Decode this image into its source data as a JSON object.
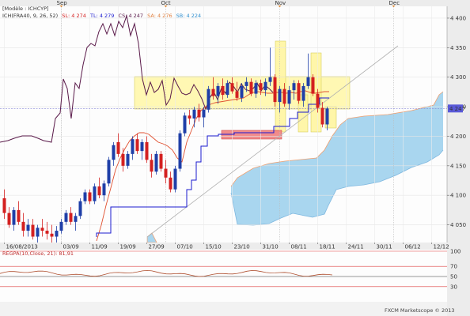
{
  "header": {
    "instrument": "[Modèle : ICHCYP]",
    "ichimoku_label": "ICH(FRA40, 9, 26, 52)",
    "sl": "SL: 4 274",
    "tl": "TL: 4 279",
    "cs": "CS: 4 247",
    "sa": "SA: 4 276",
    "sb": "SB: 4 224"
  },
  "oscillator": {
    "label": "REGPA(10,Close, 21): 81,91",
    "levels": [
      {
        "value": 100,
        "label": "100"
      },
      {
        "value": 70,
        "label": "70"
      },
      {
        "value": 50,
        "label": "50"
      },
      {
        "value": 30,
        "label": "30"
      }
    ]
  },
  "footer": {
    "copyright": "FXCM Marketscope © 2013"
  },
  "price_marker": {
    "value": 4247,
    "label": "4 247"
  },
  "colors": {
    "bull": "#1f3fa8",
    "bear": "#d42020",
    "tenkan": "#e05030",
    "kijun": "#1a1ad0",
    "chikou": "#5a1a4a",
    "cloud": "#a9d6ef",
    "cloud_edge": "#f0a070",
    "highlight": "#fff59a",
    "support_box": "#f08080"
  },
  "chart_data": {
    "type": "candlestick",
    "title": "",
    "ylim": [
      4020,
      4420
    ],
    "y_ticks": [
      4050,
      4100,
      4150,
      4200,
      4250,
      4300,
      4350,
      4400
    ],
    "y_tick_labels": [
      "4 050",
      "4 100",
      "4 150",
      "4 200",
      "4 250",
      "4 300",
      "4 350",
      "4 400"
    ],
    "month_labels": [
      {
        "label": "Sep",
        "bar": 12
      },
      {
        "label": "Oct",
        "bar": 34
      },
      {
        "label": "Nov",
        "bar": 58
      },
      {
        "label": "Dec",
        "bar": 82
      }
    ],
    "date_labels": [
      {
        "label": "16/08/2013",
        "bar": 0
      },
      {
        "label": "03/09",
        "bar": 12
      },
      {
        "label": "11/09",
        "bar": 18
      },
      {
        "label": "19/09",
        "bar": 24
      },
      {
        "label": "27/09",
        "bar": 30
      },
      {
        "label": "07/10",
        "bar": 36
      },
      {
        "label": "15/10",
        "bar": 42
      },
      {
        "label": "23/10",
        "bar": 48
      },
      {
        "label": "31/10",
        "bar": 54
      },
      {
        "label": "08/11",
        "bar": 60
      },
      {
        "label": "18/11",
        "bar": 66
      },
      {
        "label": "24/11",
        "bar": 72
      },
      {
        "label": "30/11",
        "bar": 78
      },
      {
        "label": "06/12",
        "bar": 84
      },
      {
        "label": "12/12",
        "bar": 90
      }
    ],
    "candles": [
      [
        4095,
        4110,
        4060,
        4070
      ],
      [
        4070,
        4080,
        4045,
        4050
      ],
      [
        4050,
        4080,
        4040,
        4075
      ],
      [
        4075,
        4090,
        4050,
        4055
      ],
      [
        4055,
        4070,
        4030,
        4040
      ],
      [
        4040,
        4060,
        4030,
        4050
      ],
      [
        4050,
        4060,
        4025,
        4030
      ],
      [
        4030,
        4050,
        4020,
        4045
      ],
      [
        4045,
        4060,
        4030,
        4040
      ],
      [
        4040,
        4055,
        4025,
        4035
      ],
      [
        4035,
        4050,
        4020,
        4030
      ],
      [
        4030,
        4048,
        4020,
        4040
      ],
      [
        4040,
        4060,
        4035,
        4055
      ],
      [
        4055,
        4075,
        4050,
        4070
      ],
      [
        4070,
        4080,
        4050,
        4055
      ],
      [
        4055,
        4070,
        4040,
        4065
      ],
      [
        4065,
        4095,
        4060,
        4090
      ],
      [
        4090,
        4110,
        4085,
        4105
      ],
      [
        4105,
        4110,
        4085,
        4090
      ],
      [
        4090,
        4120,
        4085,
        4115
      ],
      [
        4115,
        4130,
        4095,
        4100
      ],
      [
        4100,
        4125,
        4090,
        4120
      ],
      [
        4120,
        4165,
        4115,
        4160
      ],
      [
        4160,
        4190,
        4150,
        4185
      ],
      [
        4190,
        4205,
        4165,
        4170
      ],
      [
        4170,
        4180,
        4140,
        4150
      ],
      [
        4150,
        4175,
        4145,
        4170
      ],
      [
        4170,
        4200,
        4160,
        4195
      ],
      [
        4195,
        4205,
        4170,
        4175
      ],
      [
        4175,
        4195,
        4160,
        4190
      ],
      [
        4190,
        4200,
        4155,
        4160
      ],
      [
        4160,
        4170,
        4130,
        4140
      ],
      [
        4140,
        4175,
        4135,
        4170
      ],
      [
        4170,
        4175,
        4140,
        4145
      ],
      [
        4145,
        4160,
        4120,
        4130
      ],
      [
        4130,
        4140,
        4105,
        4110
      ],
      [
        4110,
        4150,
        4105,
        4145
      ],
      [
        4145,
        4210,
        4140,
        4205
      ],
      [
        4205,
        4240,
        4200,
        4235
      ],
      [
        4235,
        4245,
        4220,
        4230
      ],
      [
        4230,
        4250,
        4215,
        4245
      ],
      [
        4245,
        4255,
        4225,
        4232
      ],
      [
        4232,
        4250,
        4215,
        4245
      ],
      [
        4245,
        4285,
        4240,
        4280
      ],
      [
        4280,
        4300,
        4262,
        4268
      ],
      [
        4268,
        4290,
        4255,
        4285
      ],
      [
        4285,
        4298,
        4262,
        4270
      ],
      [
        4270,
        4295,
        4265,
        4290
      ],
      [
        4290,
        4300,
        4272,
        4276
      ],
      [
        4276,
        4292,
        4260,
        4265
      ],
      [
        4265,
        4290,
        4258,
        4285
      ],
      [
        4285,
        4300,
        4275,
        4292
      ],
      [
        4292,
        4298,
        4268,
        4272
      ],
      [
        4272,
        4295,
        4265,
        4290
      ],
      [
        4290,
        4296,
        4270,
        4278
      ],
      [
        4278,
        4298,
        4268,
        4292
      ],
      [
        4292,
        4350,
        4285,
        4300
      ],
      [
        4300,
        4305,
        4250,
        4258
      ],
      [
        4258,
        4285,
        4240,
        4280
      ],
      [
        4280,
        4290,
        4250,
        4255
      ],
      [
        4255,
        4285,
        4245,
        4278
      ],
      [
        4278,
        4295,
        4262,
        4290
      ],
      [
        4290,
        4295,
        4255,
        4260
      ],
      [
        4260,
        4290,
        4250,
        4285
      ],
      [
        4285,
        4340,
        4280,
        4300
      ],
      [
        4300,
        4305,
        4268,
        4272
      ],
      [
        4272,
        4280,
        4240,
        4248
      ],
      [
        4248,
        4258,
        4215,
        4220
      ],
      [
        4220,
        4250,
        4210,
        4247
      ]
    ]
  }
}
